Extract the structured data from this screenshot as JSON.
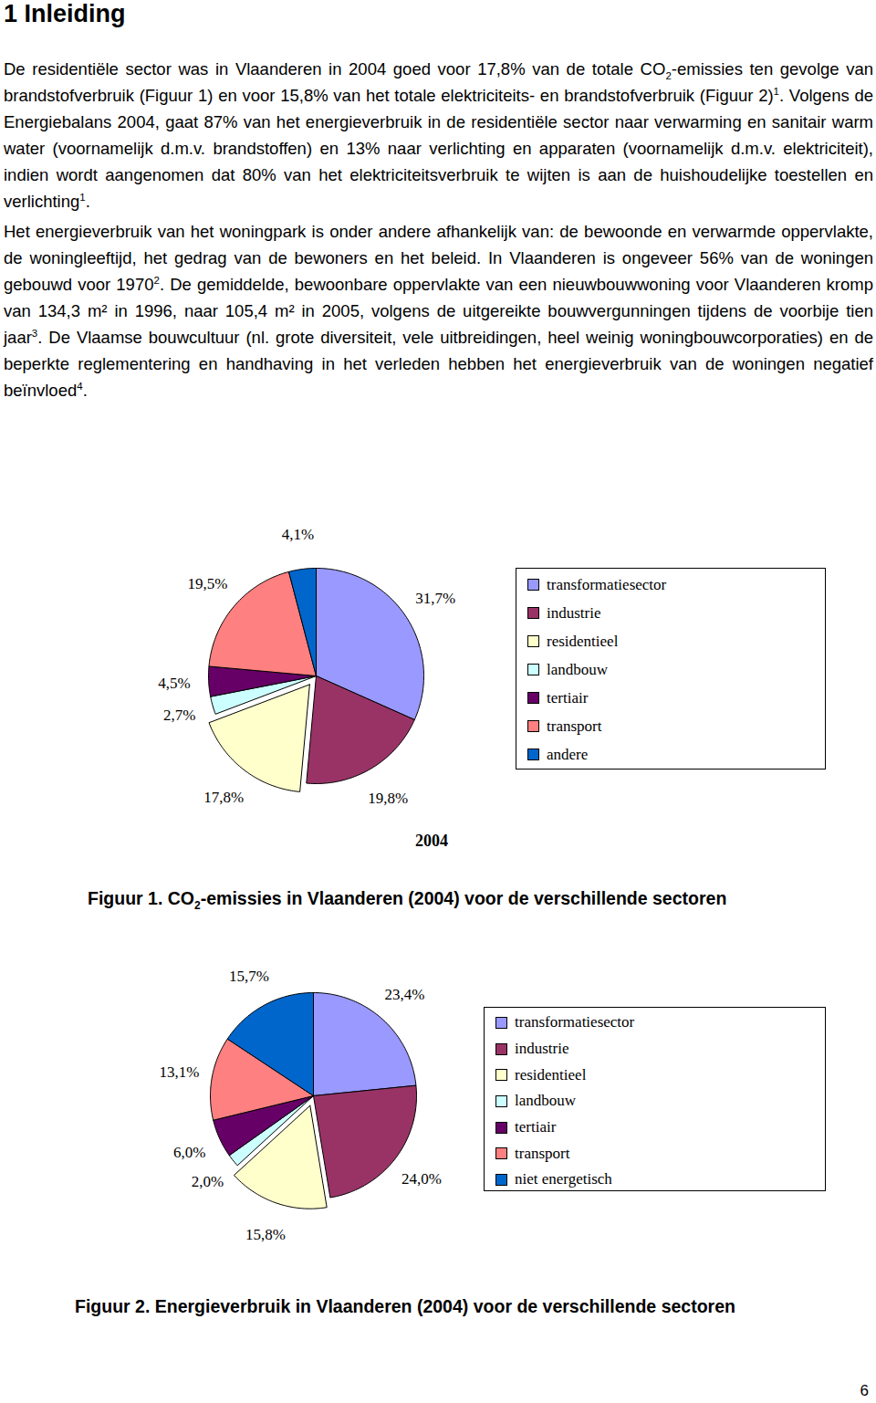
{
  "document": {
    "heading": "1 Inleiding",
    "paragraphs": [
      [
        {
          "text": "De residentiële sector was in Vlaanderen in 2004 goed voor 17,8% van de totale CO"
        },
        {
          "sub": "2"
        },
        {
          "text": "-emissies ten gevolge van brandstofverbruik (Figuur 1) en voor 15,8% van het totale elektriciteits- en brandstofverbruik (Figuur 2)"
        },
        {
          "sup": "1"
        },
        {
          "text": ". Volgens de Energiebalans 2004, gaat 87% van het energieverbruik in de residentiële sector naar verwarming en sanitair warm water (voornamelijk d.m.v. brandstoffen) en 13% naar verlichting en apparaten (voornamelijk d.m.v. elektriciteit), indien wordt aangenomen dat 80% van het elektriciteitsverbruik te wijten is aan de huishoudelijke toestellen en verlichting"
        },
        {
          "sup": "1"
        },
        {
          "text": "."
        }
      ],
      [
        {
          "text": "Het energieverbruik van het woningpark is onder andere afhankelijk van: de bewoonde en verwarmde oppervlakte, de woningleeftijd, het gedrag van de bewoners en het beleid. In Vlaanderen is ongeveer 56% van de woningen gebouwd voor 1970"
        },
        {
          "sup": "2"
        },
        {
          "text": ". De gemiddelde, bewoonbare oppervlakte van een nieuwbouwwoning voor Vlaanderen kromp van 134,3 m² in 1996, naar 105,4 m² in 2005, volgens de uitgereikte bouwvergunningen tijdens de voorbije tien jaar"
        },
        {
          "sup": "3"
        },
        {
          "text": ". De Vlaamse bouwcultuur (nl. grote diversiteit, vele uitbreidingen, heel weinig woningbouwcorporaties) en de beperkte reglementering en handhaving in het verleden hebben het energieverbruik van de woningen negatief beïnvloed"
        },
        {
          "sup": "4"
        },
        {
          "text": "."
        }
      ]
    ],
    "captions": [
      [
        {
          "text": "Figuur 1. CO"
        },
        {
          "sub": "2"
        },
        {
          "text": "-emissies in Vlaanderen (2004) voor de verschillende sectoren"
        }
      ],
      [
        {
          "text": "Figuur 2. Energieverbruik in Vlaanderen (2004) voor de verschillende sectoren"
        }
      ]
    ],
    "page_number": "6"
  },
  "chart_data": [
    {
      "type": "pie",
      "title": "2004",
      "categories": [
        "transformatiesector",
        "industrie",
        "residentieel",
        "landbouw",
        "tertiair",
        "transport",
        "andere"
      ],
      "values": [
        31.7,
        19.8,
        17.8,
        2.7,
        4.5,
        19.5,
        4.1
      ],
      "value_labels": [
        "31,7%",
        "19,8%",
        "17,8%",
        "2,7%",
        "4,5%",
        "19,5%",
        "4,1%"
      ],
      "colors": [
        "#9999FF",
        "#993366",
        "#FFFFCC",
        "#CCFFFF",
        "#660066",
        "#FF8080",
        "#0066CC"
      ],
      "data_labels": true,
      "legend": "right"
    },
    {
      "type": "pie",
      "categories": [
        "transformatiesector",
        "industrie",
        "residentieel",
        "landbouw",
        "tertiair",
        "transport",
        "niet energetisch"
      ],
      "values": [
        23.4,
        24.0,
        15.8,
        2.0,
        6.0,
        13.1,
        15.7
      ],
      "value_labels": [
        "23,4%",
        "24,0%",
        "15,8%",
        "2,0%",
        "6,0%",
        "13,1%",
        "15,7%"
      ],
      "colors": [
        "#9999FF",
        "#993366",
        "#FFFFCC",
        "#CCFFFF",
        "#660066",
        "#FF8080",
        "#0066CC"
      ],
      "data_labels": true,
      "legend": "right"
    }
  ]
}
